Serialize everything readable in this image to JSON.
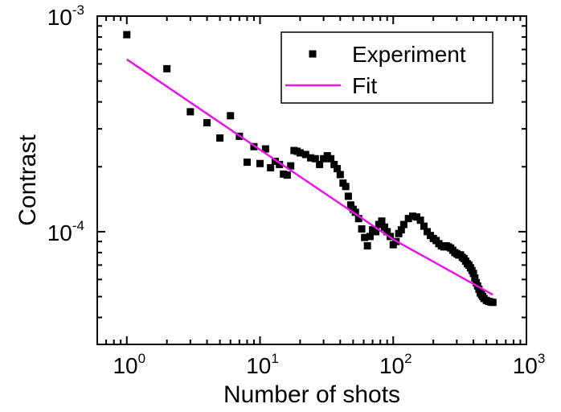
{
  "chart_data": {
    "type": "scatter",
    "xscale": "log",
    "yscale": "log",
    "xlim": [
      0.6,
      1000
    ],
    "ylim": [
      3e-05,
      0.001
    ],
    "xlabel": "Number of shots",
    "ylabel": "Contrast",
    "grid": false,
    "legend_position": "top-right",
    "x_ticks": [
      {
        "value": 1,
        "base": "10",
        "exp": "0"
      },
      {
        "value": 10,
        "base": "10",
        "exp": "1"
      },
      {
        "value": 100,
        "base": "10",
        "exp": "2"
      },
      {
        "value": 1000,
        "base": "10",
        "exp": "3"
      }
    ],
    "y_ticks": [
      {
        "value": 0.0001,
        "base": "10",
        "exp": "-4"
      },
      {
        "value": 0.001,
        "base": "10",
        "exp": "-3"
      }
    ],
    "series": [
      {
        "name": "Experiment",
        "kind": "scatter",
        "marker": "square",
        "color": "#000000",
        "points": [
          [
            1,
            0.00082
          ],
          [
            2,
            0.00057
          ],
          [
            3,
            0.00036
          ],
          [
            4,
            0.00032
          ],
          [
            5,
            0.000272
          ],
          [
            6,
            0.000345
          ],
          [
            7,
            0.000277
          ],
          [
            8,
            0.00021
          ],
          [
            9,
            0.000248
          ],
          [
            10,
            0.000207
          ],
          [
            11,
            0.000242
          ],
          [
            12,
            0.000198
          ],
          [
            13,
            0.000212
          ],
          [
            14,
            0.000205
          ],
          [
            15,
            0.000185
          ],
          [
            16,
            0.000183
          ],
          [
            17,
            0.000202
          ],
          [
            18,
            0.000238
          ],
          [
            19,
            0.000236
          ],
          [
            20,
            0.000232
          ],
          [
            22,
            0.000228
          ],
          [
            24,
            0.00022
          ],
          [
            26,
            0.000218
          ],
          [
            28,
            0.000205
          ],
          [
            30,
            0.000218
          ],
          [
            32,
            0.000225
          ],
          [
            34,
            0.000218
          ],
          [
            36,
            0.000205
          ],
          [
            38,
            0.000196
          ],
          [
            40,
            0.000184
          ],
          [
            42,
            0.000168
          ],
          [
            44,
            0.000162
          ],
          [
            46,
            0.000146
          ],
          [
            48,
            0.000133
          ],
          [
            50,
            0.000127
          ],
          [
            52,
            0.000123
          ],
          [
            55,
            0.000115
          ],
          [
            58,
            0.000103
          ],
          [
            61,
            9.4e-05
          ],
          [
            64,
            8.6e-05
          ],
          [
            67,
            9.5e-05
          ],
          [
            70,
            0.000102
          ],
          [
            74,
            0.0001
          ],
          [
            78,
            0.000108
          ],
          [
            82,
            0.000112
          ],
          [
            86,
            0.000105
          ],
          [
            90,
            0.0001
          ],
          [
            95,
            9.5e-05
          ],
          [
            100,
            8.7e-05
          ],
          [
            105,
            9e-05
          ],
          [
            110,
            9.8e-05
          ],
          [
            115,
            0.000102
          ],
          [
            120,
            0.000108
          ],
          [
            130,
            0.000115
          ],
          [
            140,
            0.000118
          ],
          [
            150,
            0.000117
          ],
          [
            160,
            0.000113
          ],
          [
            170,
            0.000106
          ],
          [
            180,
            0.0001
          ],
          [
            190,
            9.6e-05
          ],
          [
            200,
            9.3e-05
          ],
          [
            210,
            9.1e-05
          ],
          [
            220,
            8.8e-05
          ],
          [
            230,
            8.6e-05
          ],
          [
            240,
            8.5e-05
          ],
          [
            250,
            8.6e-05
          ],
          [
            260,
            8.5e-05
          ],
          [
            270,
            8.4e-05
          ],
          [
            280,
            8.2e-05
          ],
          [
            290,
            8e-05
          ],
          [
            300,
            7.9e-05
          ],
          [
            310,
            7.8e-05
          ],
          [
            320,
            7.8e-05
          ],
          [
            330,
            7.6e-05
          ],
          [
            340,
            7.5e-05
          ],
          [
            350,
            7.3e-05
          ],
          [
            360,
            7.1e-05
          ],
          [
            370,
            7e-05
          ],
          [
            380,
            6.8e-05
          ],
          [
            390,
            6.6e-05
          ],
          [
            400,
            6.4e-05
          ],
          [
            410,
            6.1e-05
          ],
          [
            420,
            5.8e-05
          ],
          [
            430,
            5.6e-05
          ],
          [
            440,
            5.4e-05
          ],
          [
            450,
            5.2e-05
          ],
          [
            460,
            5.1e-05
          ],
          [
            470,
            5e-05
          ],
          [
            480,
            4.9e-05
          ],
          [
            500,
            4.8e-05
          ],
          [
            520,
            4.75e-05
          ],
          [
            540,
            4.72e-05
          ],
          [
            560,
            4.7e-05
          ]
        ]
      },
      {
        "name": "Fit",
        "kind": "line",
        "color": "#e815e8",
        "points": [
          [
            1,
            0.00063
          ],
          [
            10,
            0.00024
          ],
          [
            100,
            9.2e-05
          ],
          [
            560,
            5.1e-05
          ]
        ]
      }
    ]
  }
}
